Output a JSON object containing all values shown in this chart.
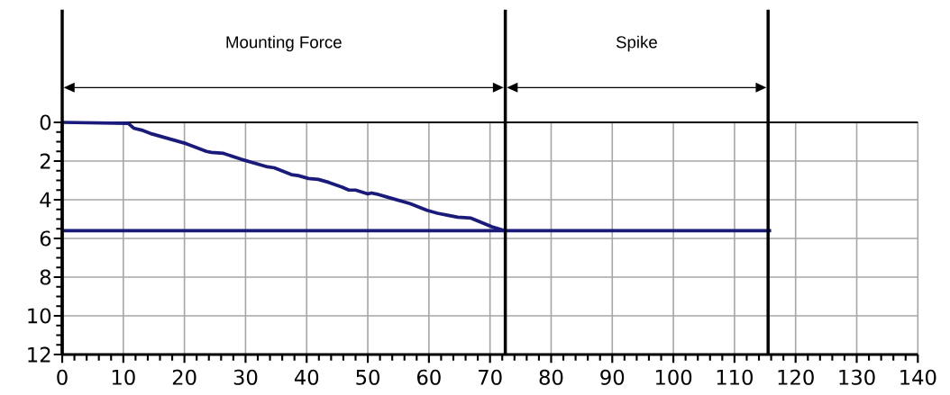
{
  "chart_data": {
    "type": "line",
    "series": [
      {
        "color": "#1a1a7a",
        "x": [
          0,
          10.8,
          11.7,
          13,
          14.7,
          17.5,
          20.3,
          23.6,
          24.4,
          26.4,
          29.2,
          33.6,
          34.7,
          37.5,
          38.6,
          40.3,
          41.9,
          43.6,
          45.8,
          46.9,
          48,
          50,
          50.6,
          51.4,
          53.6,
          56.9,
          59.7,
          61.4,
          63,
          64.7,
          66.9,
          70.3,
          71.9,
          72.5
        ],
        "values": [
          0,
          0.05,
          0.3,
          0.4,
          0.6,
          0.85,
          1.1,
          1.5,
          1.55,
          1.6,
          1.9,
          2.3,
          2.35,
          2.7,
          2.75,
          2.9,
          2.95,
          3.1,
          3.35,
          3.5,
          3.5,
          3.7,
          3.65,
          3.7,
          3.9,
          4.2,
          4.55,
          4.7,
          4.8,
          4.9,
          4.95,
          5.4,
          5.55,
          5.6
        ]
      },
      {
        "color": "#1a1a7a",
        "x": [
          0,
          116
        ],
        "values": [
          5.6,
          5.6
        ]
      }
    ],
    "xlim": [
      0,
      140
    ],
    "ylim": [
      12,
      0
    ],
    "xticks": [
      0,
      10,
      20,
      30,
      40,
      50,
      60,
      70,
      80,
      90,
      100,
      110,
      120,
      130,
      140
    ],
    "yticks": [
      0,
      2,
      4,
      6,
      8,
      10,
      12
    ],
    "grid": true,
    "ref_lines": [
      {
        "axis": "x",
        "value": 0,
        "color": "#000000"
      },
      {
        "axis": "x",
        "value": 72.5,
        "color": "#000000"
      },
      {
        "axis": "x",
        "value": 115.5,
        "color": "#000000"
      }
    ],
    "annotations": [
      "Mounting Force",
      "Spike"
    ]
  }
}
